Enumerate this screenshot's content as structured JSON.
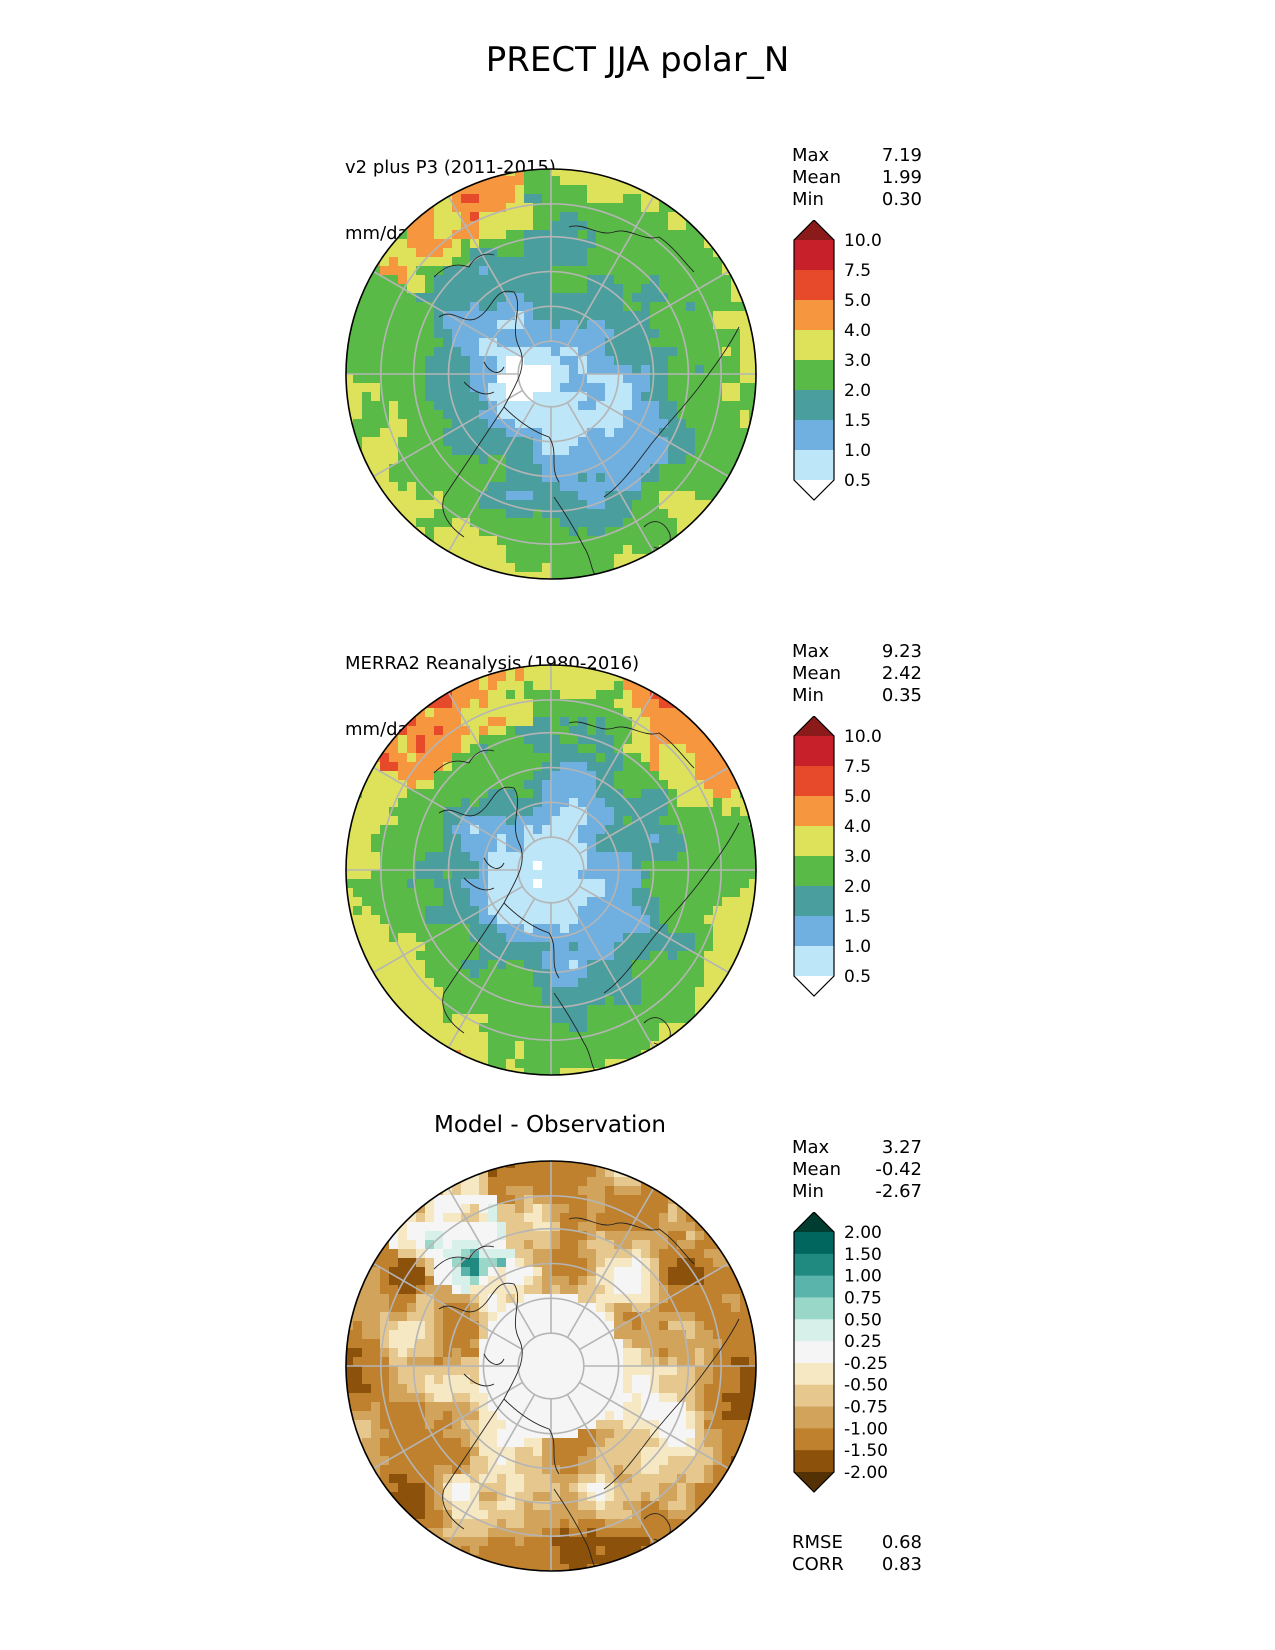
{
  "title": "PRECT JJA polar_N",
  "panels": [
    {
      "id": "test",
      "subtitle_line1": "v2 plus P3 (2011-2015)",
      "subtitle_line2": "mm/day",
      "stats": {
        "max_label": "Max",
        "max": "7.19",
        "mean_label": "Mean",
        "mean": "1.99",
        "min_label": "Min",
        "min": "0.30"
      },
      "colorbar": {
        "levels": [
          "0.5",
          "1.0",
          "1.5",
          "2.0",
          "3.0",
          "4.0",
          "5.0",
          "7.5",
          "10.0"
        ],
        "colors": [
          "#ffffff",
          "#bde6f8",
          "#6fb0e0",
          "#4a9e9e",
          "#5aba48",
          "#dde25a",
          "#f6963e",
          "#e64a2a",
          "#c8202a",
          "#8b1a1a"
        ]
      }
    },
    {
      "id": "reference",
      "subtitle_line1": "MERRA2 Reanalysis (1980-2016)",
      "subtitle_line2": "mm/day",
      "stats": {
        "max_label": "Max",
        "max": "9.23",
        "mean_label": "Mean",
        "mean": "2.42",
        "min_label": "Min",
        "min": "0.35"
      },
      "colorbar": {
        "levels": [
          "0.5",
          "1.0",
          "1.5",
          "2.0",
          "3.0",
          "4.0",
          "5.0",
          "7.5",
          "10.0"
        ],
        "colors": [
          "#ffffff",
          "#bde6f8",
          "#6fb0e0",
          "#4a9e9e",
          "#5aba48",
          "#dde25a",
          "#f6963e",
          "#e64a2a",
          "#c8202a",
          "#8b1a1a"
        ]
      }
    },
    {
      "id": "difference",
      "title": "Model - Observation",
      "stats": {
        "max_label": "Max",
        "max": "3.27",
        "mean_label": "Mean",
        "mean": "-0.42",
        "min_label": "Min",
        "min": "-2.67"
      },
      "colorbar": {
        "levels": [
          "-2.00",
          "-1.50",
          "-1.00",
          "-0.75",
          "-0.50",
          "-0.25",
          "0.25",
          "0.50",
          "0.75",
          "1.00",
          "1.50",
          "2.00"
        ],
        "colors": [
          "#543005",
          "#8c510a",
          "#bf812d",
          "#d2a35a",
          "#e6c88e",
          "#f6e8c3",
          "#f5f5f5",
          "#d8f0ea",
          "#99d8c9",
          "#5ab4ac",
          "#218a80",
          "#01665e",
          "#003c30"
        ]
      },
      "metrics": {
        "rmse_label": "RMSE",
        "rmse": "0.68",
        "corr_label": "CORR",
        "corr": "0.83"
      }
    }
  ]
}
